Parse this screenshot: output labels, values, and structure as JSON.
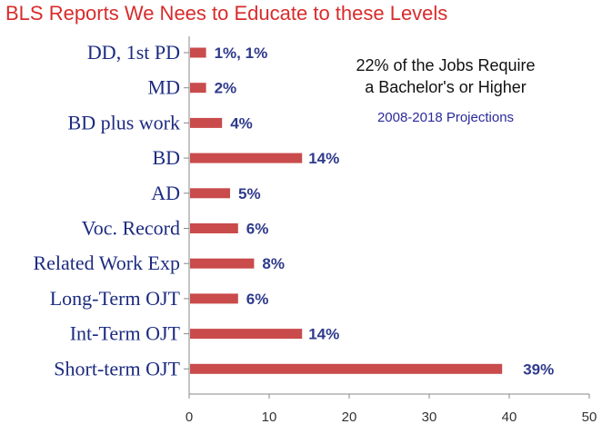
{
  "title": "BLS Reports We Nees to Educate to these Levels",
  "annotation": {
    "line1": "22% of the Jobs Require",
    "line2": "a Bachelor's or Higher",
    "line3": "2008-2018 Projections"
  },
  "colors": {
    "bar": "#c94b4b",
    "title": "#d92b2b",
    "category_text": "#1c2b80",
    "value_text": "#2f3a8c"
  },
  "chart_data": {
    "type": "bar",
    "orientation": "horizontal",
    "title": "BLS Reports We Nees to Educate to these Levels",
    "categories": [
      "DD, 1st PD",
      "MD",
      "BD plus work",
      "BD",
      "AD",
      "Voc. Record",
      "Related Work Exp",
      "Long-Term OJT",
      "Int-Term OJT",
      "Short-term OJT"
    ],
    "values": [
      2,
      2,
      4,
      14,
      5,
      6,
      8,
      6,
      14,
      39
    ],
    "value_labels": [
      "1%, 1%",
      "2%",
      "4%",
      "14%",
      "5%",
      "6%",
      "8%",
      "6%",
      "14%",
      "39%"
    ],
    "xlim": [
      0,
      50
    ],
    "xticks": [
      "0",
      "10",
      "20",
      "30",
      "40",
      "50"
    ],
    "xlabel": "",
    "ylabel": "",
    "grid": false,
    "legend": "none"
  }
}
